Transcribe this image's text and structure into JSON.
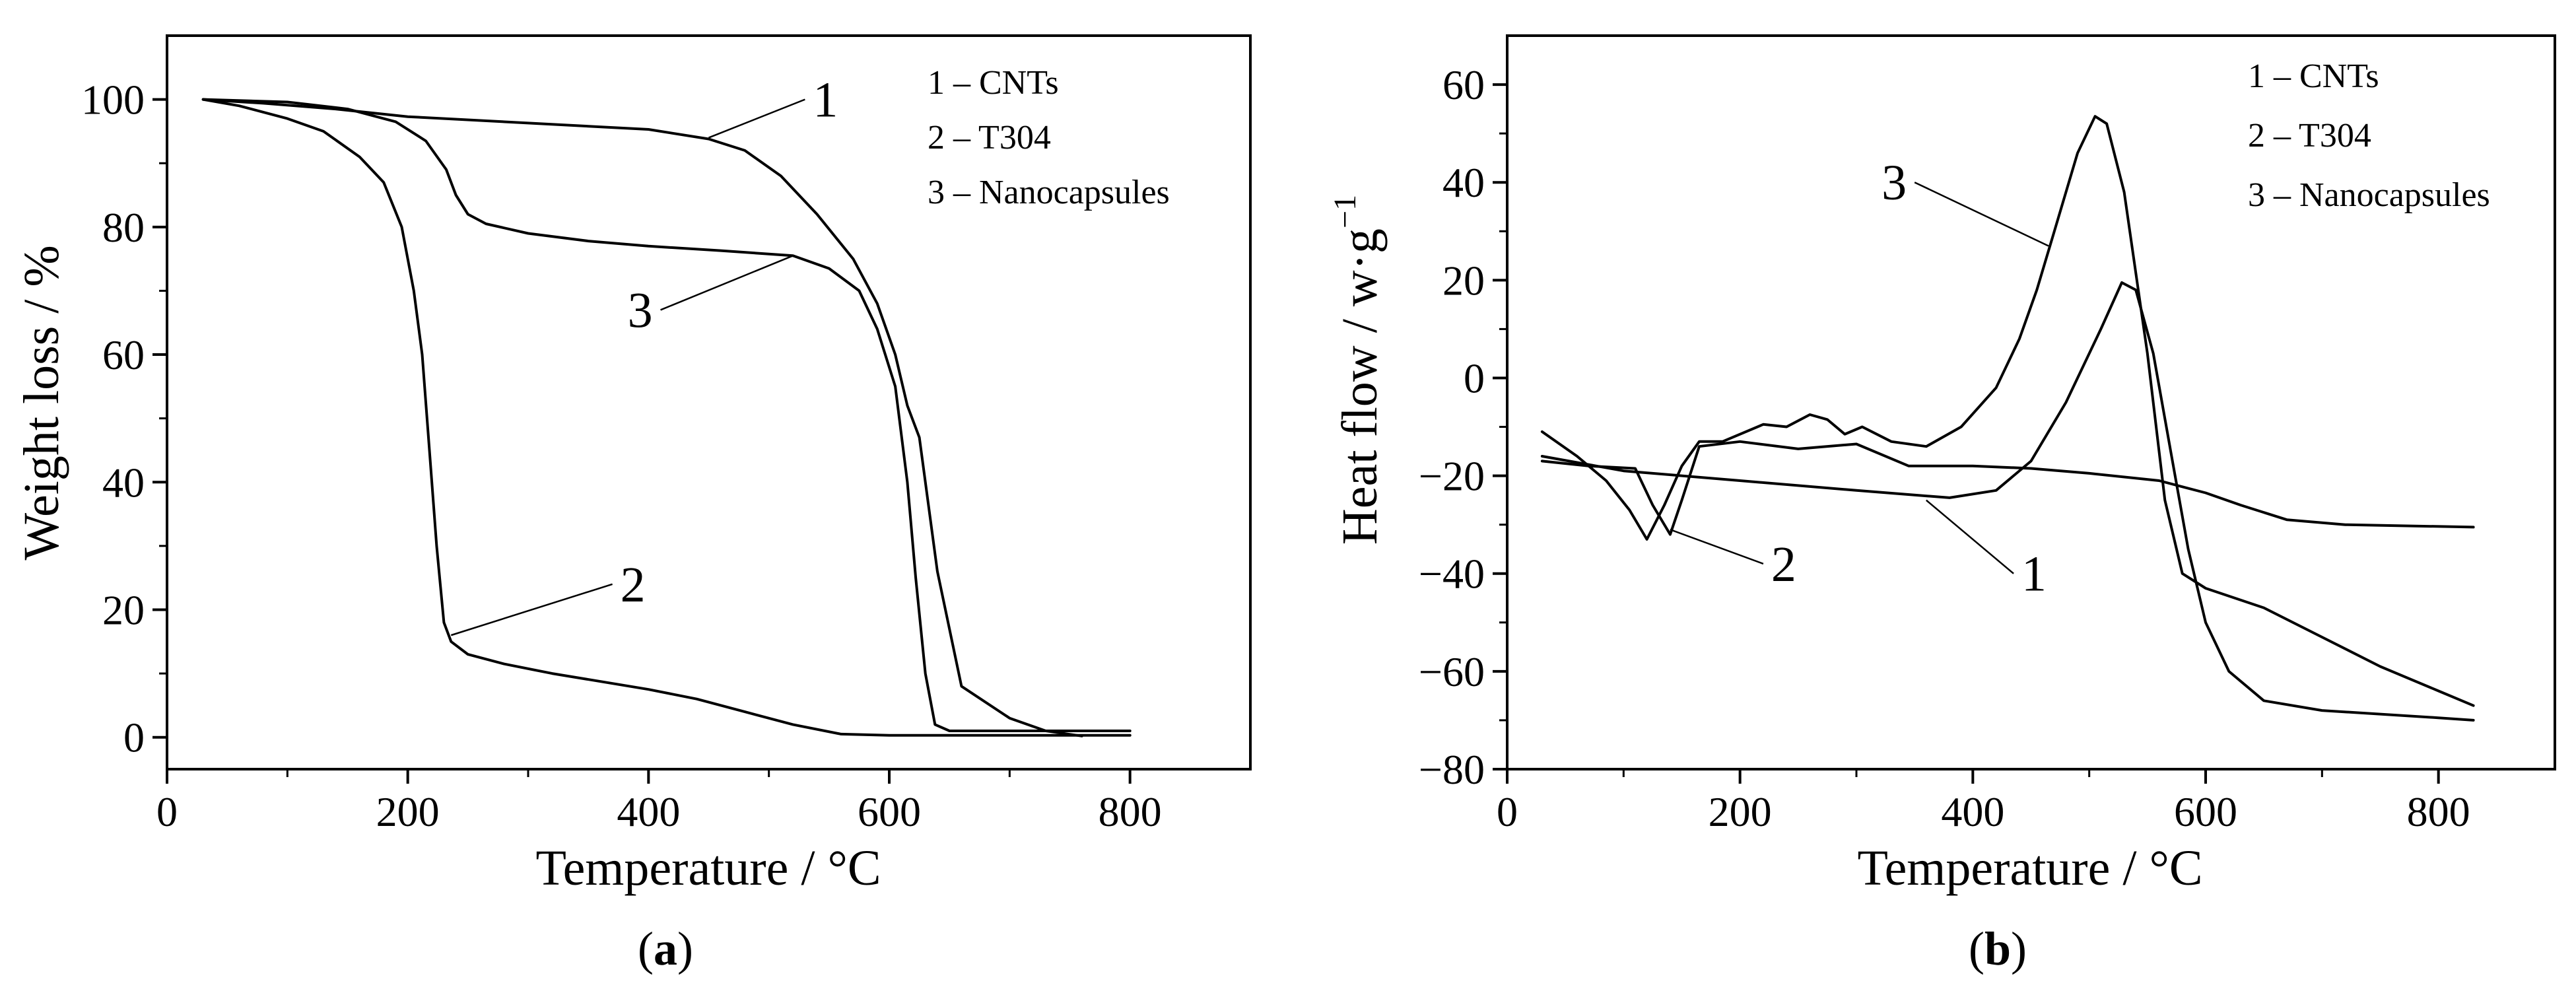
{
  "chart_data": [
    {
      "type": "line",
      "panel_label": {
        "open": "(",
        "letter": "a",
        "close": ")"
      },
      "xlabel": "Temperature / °C",
      "ylabel": "Weight loss / %",
      "xlim": [
        0,
        900
      ],
      "ylim": [
        -5,
        110
      ],
      "xticks": [
        0,
        200,
        400,
        600,
        800
      ],
      "yticks": [
        0,
        20,
        40,
        60,
        80,
        100
      ],
      "legend": [
        "1 – CNTs",
        "2 – T304",
        "3 – Nanocapsules"
      ],
      "legend_position": "top-right",
      "series": [
        {
          "name": "1",
          "label": "1",
          "points": [
            [
              30,
              100
            ],
            [
              80,
              99.4
            ],
            [
              140,
              98.5
            ],
            [
              200,
              97.3
            ],
            [
              300,
              96.3
            ],
            [
              400,
              95.3
            ],
            [
              450,
              93.8
            ],
            [
              480,
              92
            ],
            [
              510,
              88
            ],
            [
              540,
              82
            ],
            [
              570,
              75
            ],
            [
              590,
              68
            ],
            [
              605,
              60
            ],
            [
              615,
              52
            ],
            [
              625,
              47
            ],
            [
              640,
              26
            ],
            [
              660,
              8
            ],
            [
              700,
              3
            ],
            [
              730,
              1
            ],
            [
              760,
              0.2
            ]
          ]
        },
        {
          "name": "2",
          "label": "2",
          "points": [
            [
              30,
              100
            ],
            [
              60,
              99
            ],
            [
              100,
              97
            ],
            [
              130,
              95
            ],
            [
              160,
              91
            ],
            [
              180,
              87
            ],
            [
              195,
              80
            ],
            [
              205,
              70
            ],
            [
              212,
              60
            ],
            [
              218,
              45
            ],
            [
              224,
              30
            ],
            [
              230,
              18
            ],
            [
              236,
              15
            ],
            [
              250,
              13
            ],
            [
              280,
              11.5
            ],
            [
              320,
              10
            ],
            [
              400,
              7.5
            ],
            [
              440,
              6
            ],
            [
              480,
              4
            ],
            [
              520,
              2
            ],
            [
              560,
              0.5
            ],
            [
              600,
              0.3
            ],
            [
              700,
              0.3
            ],
            [
              800,
              0.3
            ]
          ]
        },
        {
          "name": "3",
          "label": "3",
          "points": [
            [
              30,
              100
            ],
            [
              100,
              99.6
            ],
            [
              150,
              98.5
            ],
            [
              190,
              96.5
            ],
            [
              215,
              93.5
            ],
            [
              232,
              89
            ],
            [
              240,
              85
            ],
            [
              250,
              82
            ],
            [
              265,
              80.5
            ],
            [
              300,
              79
            ],
            [
              350,
              77.8
            ],
            [
              400,
              77
            ],
            [
              460,
              76.3
            ],
            [
              520,
              75.5
            ],
            [
              550,
              73.5
            ],
            [
              575,
              70
            ],
            [
              590,
              64
            ],
            [
              605,
              55
            ],
            [
              615,
              40
            ],
            [
              622,
              25
            ],
            [
              630,
              10
            ],
            [
              638,
              2
            ],
            [
              650,
              1
            ],
            [
              700,
              1
            ],
            [
              800,
              1
            ]
          ]
        }
      ],
      "labels": {
        "1": {
          "text": "1",
          "at": [
            530,
            100
          ],
          "point": [
            450,
            94
          ]
        },
        "2": {
          "text": "2",
          "at": [
            370,
            24
          ],
          "point": [
            236,
            16
          ]
        },
        "3": {
          "text": "3",
          "at": [
            410,
            67
          ],
          "point": [
            520,
            75.5
          ]
        }
      }
    },
    {
      "type": "line",
      "panel_label": {
        "open": "(",
        "letter": "b",
        "close": ")"
      },
      "xlabel": "Temperature / °C",
      "ylabel_main": "Heat flow / w·g",
      "ylabel_sup": "−1",
      "xlim": [
        0,
        900
      ],
      "ylim": [
        -80,
        70
      ],
      "xticks": [
        0,
        200,
        400,
        600,
        800
      ],
      "yticks": [
        -80,
        -60,
        -40,
        -20,
        0,
        20,
        40,
        60
      ],
      "legend": [
        "1 – CNTs",
        "2 – T304",
        "3 – Nanocapsules"
      ],
      "legend_position": "top-right",
      "series": [
        {
          "name": "1",
          "label": "1",
          "points": [
            [
              30,
              -16
            ],
            [
              100,
              -19
            ],
            [
              200,
              -21
            ],
            [
              300,
              -23
            ],
            [
              380,
              -24.5
            ],
            [
              420,
              -23
            ],
            [
              450,
              -17
            ],
            [
              480,
              -5
            ],
            [
              510,
              10
            ],
            [
              528,
              19.5
            ],
            [
              540,
              18
            ],
            [
              555,
              5
            ],
            [
              570,
              -15
            ],
            [
              585,
              -35
            ],
            [
              600,
              -50
            ],
            [
              620,
              -60
            ],
            [
              650,
              -66
            ],
            [
              700,
              -68
            ],
            [
              800,
              -69.5
            ],
            [
              830,
              -70
            ]
          ]
        },
        {
          "name": "2",
          "label": "2",
          "points": [
            [
              30,
              -17
            ],
            [
              70,
              -18
            ],
            [
              110,
              -18.5
            ],
            [
              125,
              -26
            ],
            [
              140,
              -32
            ],
            [
              150,
              -25
            ],
            [
              165,
              -14
            ],
            [
              200,
              -13
            ],
            [
              250,
              -14.5
            ],
            [
              300,
              -13.5
            ],
            [
              345,
              -18
            ],
            [
              400,
              -18
            ],
            [
              450,
              -18.5
            ],
            [
              500,
              -19.5
            ],
            [
              560,
              -21
            ],
            [
              600,
              -23.5
            ],
            [
              630,
              -26
            ],
            [
              670,
              -29
            ],
            [
              720,
              -30
            ],
            [
              830,
              -30.5
            ]
          ]
        },
        {
          "name": "3",
          "label": "3",
          "points": [
            [
              30,
              -11
            ],
            [
              60,
              -16
            ],
            [
              85,
              -21
            ],
            [
              105,
              -27
            ],
            [
              120,
              -33
            ],
            [
              135,
              -26
            ],
            [
              150,
              -18
            ],
            [
              165,
              -13
            ],
            [
              185,
              -13
            ],
            [
              220,
              -9.5
            ],
            [
              240,
              -10
            ],
            [
              260,
              -7.5
            ],
            [
              275,
              -8.5
            ],
            [
              290,
              -11.5
            ],
            [
              305,
              -10
            ],
            [
              330,
              -13
            ],
            [
              360,
              -14
            ],
            [
              390,
              -10
            ],
            [
              420,
              -2
            ],
            [
              440,
              8
            ],
            [
              455,
              18
            ],
            [
              470,
              30
            ],
            [
              490,
              46
            ],
            [
              505,
              53.5
            ],
            [
              515,
              52
            ],
            [
              530,
              38
            ],
            [
              550,
              5
            ],
            [
              565,
              -25
            ],
            [
              580,
              -40
            ],
            [
              600,
              -43
            ],
            [
              650,
              -47
            ],
            [
              700,
              -53
            ],
            [
              750,
              -59
            ],
            [
              800,
              -64
            ],
            [
              830,
              -67
            ]
          ]
        }
      ],
      "labels": {
        "1": {
          "text": "1",
          "at": [
            435,
            -40
          ],
          "point": [
            360,
            -25
          ]
        },
        "2": {
          "text": "2",
          "at": [
            220,
            -38
          ],
          "point": [
            140,
            -31
          ]
        },
        "3": {
          "text": "3",
          "at": [
            350,
            40
          ],
          "point": [
            465,
            27
          ]
        }
      }
    }
  ]
}
